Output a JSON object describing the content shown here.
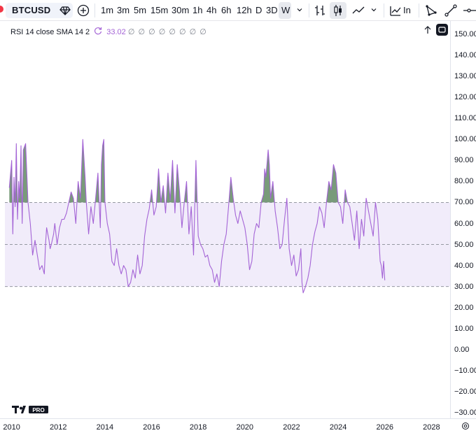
{
  "toolbar": {
    "symbol": "BTCUSD",
    "timeframes": [
      "1m",
      "3m",
      "5m",
      "15m",
      "30m",
      "1h",
      "4h",
      "6h",
      "12h",
      "D",
      "3D",
      "W"
    ],
    "active_timeframe": "W",
    "indicators_label": "In"
  },
  "legend": {
    "name": "RSI 14 close SMA 14 2",
    "value": "33.02",
    "placeholders": "∅ ∅ ∅ ∅ ∅ ∅ ∅ ∅"
  },
  "colors": {
    "rsi_line": "#a464d6",
    "band_fill": "#f1ecfa",
    "overbought_fill": "#4c7a4e",
    "bands": "#9598a1"
  },
  "chart_data": {
    "type": "line",
    "series": [
      {
        "values_x": [
          2009.9,
          2010.0,
          2010.05,
          2010.1,
          2010.15,
          2010.2,
          2010.25,
          2010.3,
          2010.35,
          2010.4,
          2010.45,
          2010.5,
          2010.6,
          2010.7,
          2010.8,
          2010.9,
          2011.0,
          2011.1,
          2011.2,
          2011.3,
          2011.4,
          2011.45,
          2011.5,
          2011.6,
          2011.65,
          2011.7,
          2011.8,
          2011.85,
          2011.95,
          2012.05,
          2012.15,
          2012.25,
          2012.35,
          2012.45,
          2012.55,
          2012.65,
          2012.75,
          2012.85,
          2012.95,
          2013.05,
          2013.15,
          2013.2,
          2013.3,
          2013.4,
          2013.5,
          2013.6,
          2013.7,
          2013.8,
          2013.85,
          2013.9,
          2013.95,
          2014.0,
          2014.1,
          2014.2,
          2014.3,
          2014.4,
          2014.5,
          2014.6,
          2014.7,
          2014.8,
          2014.9,
          2015.0,
          2015.1,
          2015.2,
          2015.3,
          2015.4,
          2015.5,
          2015.6,
          2015.7,
          2015.8,
          2015.9,
          2016.0,
          2016.1,
          2016.2,
          2016.3,
          2016.4,
          2016.5,
          2016.6,
          2016.7,
          2016.8,
          2016.9,
          2017.0,
          2017.1,
          2017.2,
          2017.3,
          2017.4,
          2017.5,
          2017.6,
          2017.7,
          2017.8,
          2017.9,
          2018.0,
          2018.1,
          2018.2,
          2018.3,
          2018.4,
          2018.5,
          2018.6,
          2018.7,
          2018.8,
          2018.9,
          2019.0,
          2019.1,
          2019.2,
          2019.3,
          2019.4,
          2019.5,
          2019.6,
          2019.7,
          2019.8,
          2019.9,
          2020.0,
          2020.1,
          2020.2,
          2020.3,
          2020.4,
          2020.5,
          2020.6,
          2020.7,
          2020.8,
          2020.85,
          2020.9,
          2021.0,
          2021.05,
          2021.1,
          2021.2,
          2021.3,
          2021.4,
          2021.5,
          2021.6,
          2021.7,
          2021.8,
          2021.9,
          2022.0,
          2022.1,
          2022.2,
          2022.3,
          2022.4,
          2022.45,
          2022.5,
          2022.6,
          2022.7,
          2022.8,
          2022.9,
          2023.0,
          2023.1,
          2023.2,
          2023.3,
          2023.4,
          2023.5,
          2023.6,
          2023.7,
          2023.8,
          2023.9,
          2024.0,
          2024.1,
          2024.2,
          2024.3,
          2024.4,
          2024.5,
          2024.6,
          2024.7,
          2024.8,
          2024.9,
          2025.0,
          2025.1,
          2025.2,
          2025.3,
          2025.4,
          2025.5,
          2025.6,
          2025.7,
          2025.8,
          2025.85,
          2025.9,
          2025.95,
          2026.0
        ],
        "values_y": [
          77,
          90,
          55,
          82,
          68,
          98,
          62,
          80,
          72,
          97,
          60,
          95,
          98,
          70,
          60,
          45,
          52,
          45,
          38,
          40,
          36,
          50,
          58,
          52,
          48,
          50,
          55,
          60,
          50,
          58,
          62,
          62,
          65,
          70,
          75,
          72,
          60,
          80,
          72,
          100,
          82,
          70,
          55,
          68,
          60,
          72,
          84,
          58,
          88,
          97,
          100,
          70,
          60,
          55,
          42,
          40,
          48,
          40,
          36,
          40,
          38,
          30,
          32,
          38,
          34,
          45,
          36,
          40,
          54,
          62,
          67,
          76,
          64,
          68,
          86,
          70,
          78,
          65,
          84,
          71,
          90,
          65,
          88,
          75,
          58,
          70,
          80,
          55,
          68,
          45,
          90,
          54,
          50,
          48,
          44,
          45,
          40,
          38,
          32,
          36,
          30,
          42,
          50,
          55,
          68,
          82,
          72,
          64,
          60,
          66,
          62,
          58,
          50,
          38,
          42,
          55,
          60,
          58,
          70,
          74,
          86,
          82,
          95,
          88,
          72,
          80,
          66,
          58,
          48,
          50,
          62,
          72,
          48,
          40,
          45,
          35,
          38,
          48,
          32,
          27,
          30,
          34,
          40,
          50,
          56,
          60,
          68,
          65,
          58,
          70,
          80,
          76,
          88,
          84,
          70,
          68,
          60,
          76,
          70,
          68,
          60,
          52,
          66,
          48,
          62,
          54,
          72,
          66,
          60,
          54,
          70,
          62,
          42,
          40,
          34,
          42,
          33
        ]
      }
    ],
    "xlim": [
      2009.5,
      2028.8
    ],
    "ylim": [
      -30,
      150
    ],
    "x_ticks": [
      "2010",
      "2012",
      "2014",
      "2016",
      "2018",
      "2020",
      "2022",
      "2024",
      "2026",
      "2028"
    ],
    "y_ticks": [
      "150.00",
      "140.00",
      "130.00",
      "120.00",
      "110.00",
      "100.00",
      "90.00",
      "80.00",
      "70.00",
      "60.00",
      "50.00",
      "40.00",
      "30.00",
      "20.00",
      "10.00",
      "0.00",
      "−10.00",
      "−20.00",
      "−30.00"
    ],
    "bands": {
      "upper": 70,
      "middle": 50,
      "lower": 30
    },
    "grid": false
  }
}
